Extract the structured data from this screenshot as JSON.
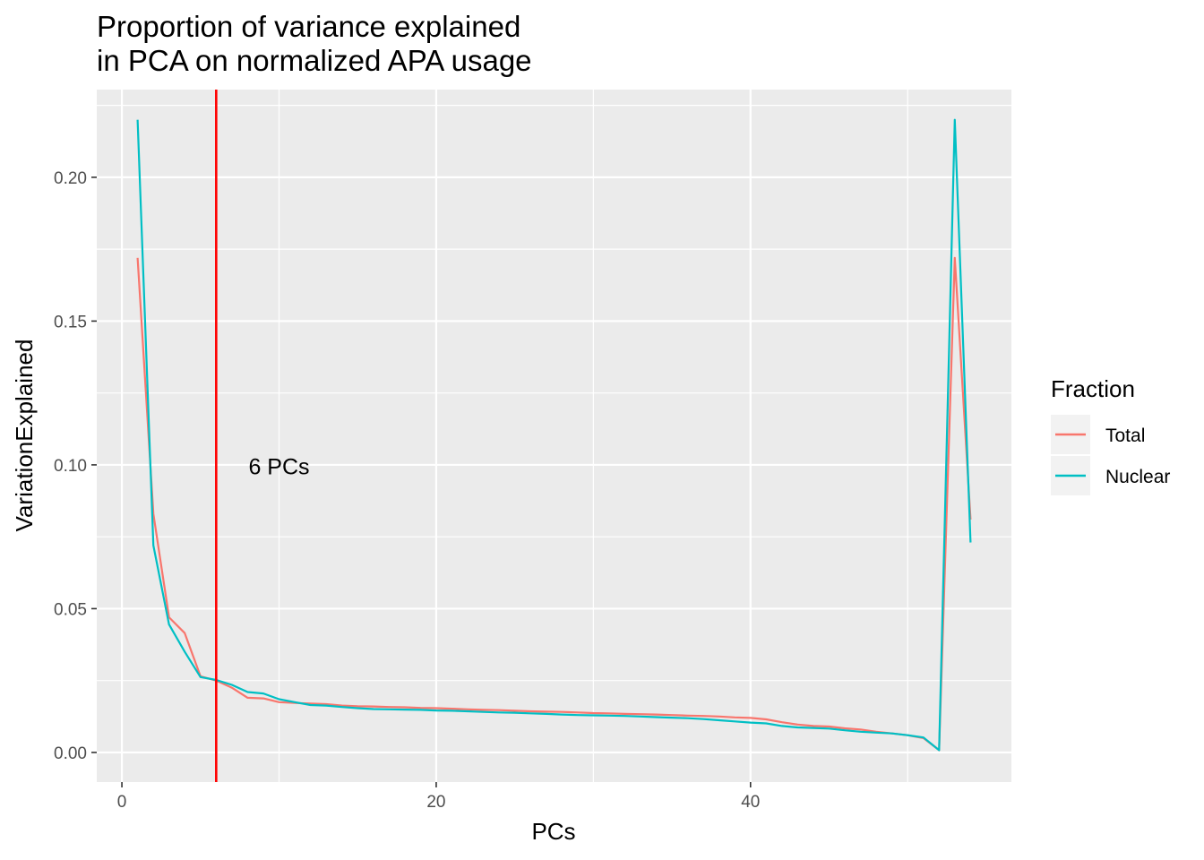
{
  "chart_data": {
    "type": "line",
    "title": [
      "Proportion of variance explained",
      "in PCA on normalized APA usage"
    ],
    "xlabel": "PCs",
    "ylabel": "VariationExplained",
    "xlim": [
      -1.6,
      56.6
    ],
    "ylim": [
      -0.0103,
      0.2305
    ],
    "xticks": [
      0,
      20,
      40
    ],
    "xtick_labels": [
      "0",
      "20",
      "40"
    ],
    "yticks": [
      0.0,
      0.05,
      0.1,
      0.15,
      0.2
    ],
    "ytick_labels": [
      "0.00",
      "0.05",
      "0.10",
      "0.15",
      "0.20"
    ],
    "legend": {
      "title": "Fraction",
      "position": "right"
    },
    "series": [
      {
        "name": "Total",
        "color": "#F8766D",
        "x": [
          1,
          2,
          3,
          4,
          5,
          6,
          7,
          8,
          9,
          10,
          11,
          12,
          13,
          14,
          15,
          16,
          17,
          18,
          19,
          20,
          21,
          22,
          23,
          24,
          25,
          26,
          27,
          28,
          29,
          30,
          31,
          32,
          33,
          34,
          35,
          36,
          37,
          38,
          39,
          40,
          41,
          42,
          43,
          44,
          45,
          46,
          47,
          48,
          49,
          50,
          51,
          52,
          53,
          54
        ],
        "values": [
          0.172,
          0.083,
          0.047,
          0.0415,
          0.0265,
          0.025,
          0.0225,
          0.019,
          0.0188,
          0.0175,
          0.0172,
          0.017,
          0.0168,
          0.0163,
          0.0161,
          0.016,
          0.0158,
          0.0157,
          0.0155,
          0.0154,
          0.0152,
          0.015,
          0.0148,
          0.0147,
          0.0145,
          0.0143,
          0.0142,
          0.0141,
          0.0139,
          0.0137,
          0.0136,
          0.0134,
          0.0133,
          0.0132,
          0.013,
          0.0128,
          0.0127,
          0.0125,
          0.0122,
          0.012,
          0.0115,
          0.0105,
          0.0097,
          0.0092,
          0.009,
          0.0084,
          0.008,
          0.0072,
          0.0066,
          0.006,
          0.005,
          0.0008,
          0.172,
          0.081
        ]
      },
      {
        "name": "Nuclear",
        "color": "#00BFC4",
        "x": [
          1,
          2,
          3,
          4,
          5,
          6,
          7,
          8,
          9,
          10,
          11,
          12,
          13,
          14,
          15,
          16,
          17,
          18,
          19,
          20,
          21,
          22,
          23,
          24,
          25,
          26,
          27,
          28,
          29,
          30,
          31,
          32,
          33,
          34,
          35,
          36,
          37,
          38,
          39,
          40,
          41,
          42,
          43,
          44,
          45,
          46,
          47,
          48,
          49,
          50,
          51,
          52,
          53,
          54
        ],
        "values": [
          0.22,
          0.072,
          0.0445,
          0.035,
          0.0262,
          0.0252,
          0.0235,
          0.021,
          0.0205,
          0.0185,
          0.0175,
          0.0165,
          0.0163,
          0.0158,
          0.0154,
          0.0151,
          0.015,
          0.0149,
          0.0148,
          0.0146,
          0.0145,
          0.0143,
          0.0141,
          0.0139,
          0.0138,
          0.0136,
          0.0134,
          0.0132,
          0.013,
          0.0129,
          0.0128,
          0.0127,
          0.0125,
          0.0123,
          0.0121,
          0.0119,
          0.0116,
          0.0112,
          0.0108,
          0.0104,
          0.0101,
          0.0092,
          0.0087,
          0.0085,
          0.0083,
          0.0077,
          0.0072,
          0.0069,
          0.0066,
          0.006,
          0.0052,
          0.0008,
          0.22,
          0.073
        ]
      }
    ],
    "vline": {
      "x": 6,
      "color": "#FF0000"
    },
    "annotation": {
      "text": "6 PCs",
      "x": 10,
      "y": 0.0995
    }
  }
}
